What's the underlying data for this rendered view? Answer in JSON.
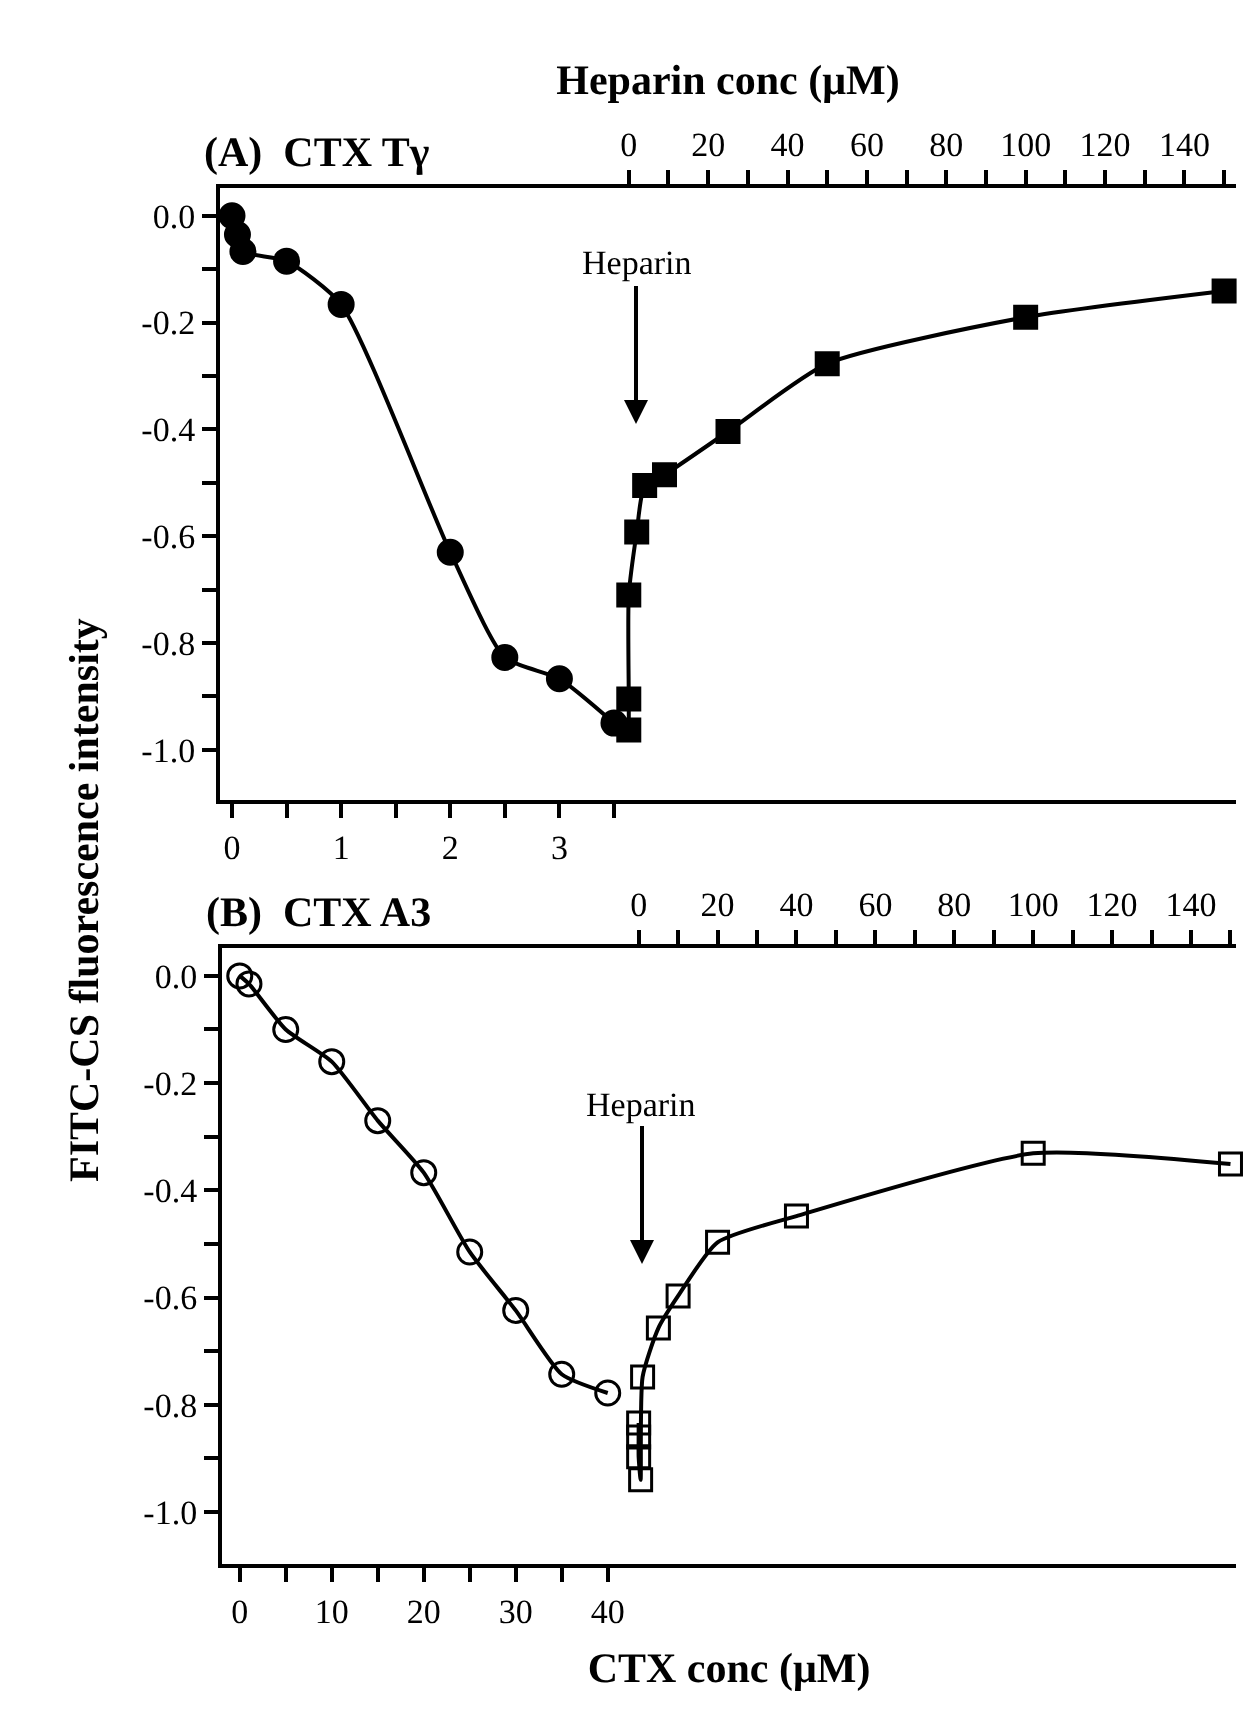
{
  "chart_data": [
    {
      "type": "line",
      "title": "(A)  CTX Tγ",
      "ylabel": "FITC-CS fluorescence intensity",
      "x2label": "Heparin conc (μM)",
      "grid": false,
      "xlim": [
        -0.11,
        9.2
      ],
      "xticks": [
        0,
        {
          "value": 0.5,
          "label": null
        },
        1,
        {
          "value": 1.5,
          "label": null
        },
        2,
        {
          "value": 2.5,
          "label": null
        },
        3,
        {
          "value": 3.5,
          "label": null
        }
      ],
      "x2lim": [
        -103,
        153
      ],
      "x2ticks": [
        0,
        {
          "value": 10,
          "label": null
        },
        20,
        {
          "value": 30,
          "label": null
        },
        40,
        {
          "value": 50,
          "label": null
        },
        60,
        {
          "value": 70,
          "label": null
        },
        80,
        {
          "value": 90,
          "label": null
        },
        100,
        {
          "value": 110,
          "label": null
        },
        120,
        {
          "value": 130,
          "label": null
        },
        140,
        {
          "value": 150,
          "label": null
        }
      ],
      "ylim": [
        -1.094,
        0.052
      ],
      "yticks": [
        {
          "value": 0,
          "label": "0.0"
        },
        {
          "value": -0.1,
          "label": null
        },
        -0.2,
        {
          "value": -0.3,
          "label": null
        },
        -0.4,
        {
          "value": -0.5,
          "label": null
        },
        -0.6,
        {
          "value": -0.7,
          "label": null
        },
        -0.8,
        {
          "value": -0.9,
          "label": null
        },
        {
          "value": -1,
          "label": "-1.0"
        }
      ],
      "series": [
        {
          "color": "#000000",
          "marker": "circle",
          "x": [
            0,
            0.05,
            0.1,
            0.5,
            1,
            2,
            2.5,
            3,
            3.5
          ],
          "values": [
            0,
            -0.035,
            -0.067,
            -0.085,
            -0.166,
            -0.63,
            -0.827,
            -0.867,
            -0.95
          ]
        },
        {
          "color": "#000000",
          "marker": "square",
          "axis": "x2",
          "x": [
            0,
            0,
            0,
            2,
            4,
            9,
            25,
            50,
            100,
            150
          ],
          "values": [
            -0.963,
            -0.905,
            -0.71,
            -0.592,
            -0.505,
            -0.485,
            -0.404,
            -0.277,
            -0.19,
            -0.141
          ]
        }
      ],
      "annotations": [
        "Heparin"
      ]
    },
    {
      "type": "line",
      "title": "(B)  CTX A3",
      "xlabel": "CTX conc (μM)",
      "grid": false,
      "xlim": [
        -1.93,
        108.3
      ],
      "xticks": [
        0,
        {
          "value": 5,
          "label": null
        },
        10,
        {
          "value": 15,
          "label": null
        },
        20,
        {
          "value": 25,
          "label": null
        },
        30,
        {
          "value": 35,
          "label": null
        },
        40
      ],
      "x2lim": [
        -105.6,
        151.4
      ],
      "x2ticks": [
        0,
        {
          "value": 10,
          "label": null
        },
        20,
        {
          "value": 30,
          "label": null
        },
        40,
        {
          "value": 50,
          "label": null
        },
        60,
        {
          "value": 70,
          "label": null
        },
        80,
        {
          "value": 90,
          "label": null
        },
        100,
        {
          "value": 110,
          "label": null
        },
        120,
        {
          "value": 130,
          "label": null
        },
        140,
        {
          "value": 150,
          "label": null
        }
      ],
      "ylim": [
        -1.097,
        0.052
      ],
      "yticks": [
        {
          "value": 0,
          "label": "0.0"
        },
        {
          "value": -0.1,
          "label": null
        },
        -0.2,
        {
          "value": -0.3,
          "label": null
        },
        -0.4,
        {
          "value": -0.5,
          "label": null
        },
        -0.6,
        {
          "value": -0.7,
          "label": null
        },
        -0.8,
        {
          "value": -0.9,
          "label": null
        },
        {
          "value": -1,
          "label": "-1.0"
        }
      ],
      "series": [
        {
          "color": "#000000",
          "marker": "circle-open",
          "x": [
            0,
            1,
            5,
            10,
            15,
            20,
            25,
            30,
            35,
            40
          ],
          "values": [
            0,
            -0.015,
            -0.1,
            -0.16,
            -0.27,
            -0.367,
            -0.515,
            -0.624,
            -0.743,
            -0.778
          ]
        },
        {
          "color": "#000000",
          "marker": "square-open",
          "axis": "x2",
          "x": [
            0,
            0,
            0,
            0.5,
            1,
            5,
            10,
            20,
            40,
            100,
            150
          ],
          "values": [
            -0.834,
            -0.86,
            -0.897,
            -0.94,
            -0.748,
            -0.657,
            -0.597,
            -0.497,
            -0.448,
            -0.331,
            -0.351
          ]
        }
      ],
      "annotations": [
        "Heparin"
      ]
    }
  ]
}
